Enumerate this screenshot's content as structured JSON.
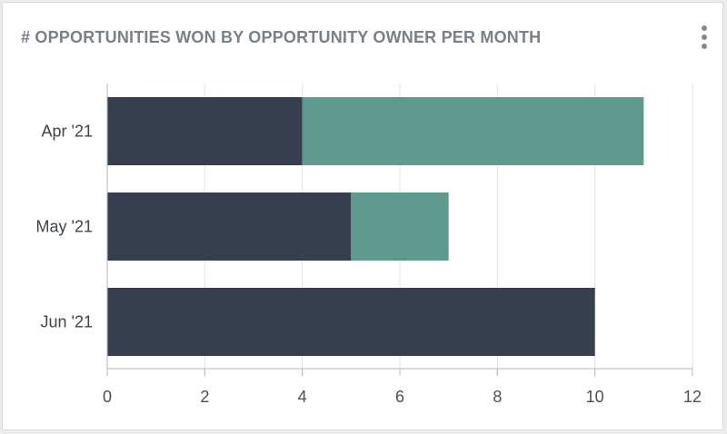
{
  "widget": {
    "title": "# OPPORTUNITIES WON BY OPPORTUNITY OWNER PER MONTH",
    "menu_icon": "more-vertical-icon"
  },
  "colors": {
    "series_1": "#363e4f",
    "series_2": "#5e9a8d",
    "grid": "#e2e2e2",
    "axis": "#b5b5b5"
  },
  "chart_data": {
    "type": "bar",
    "orientation": "horizontal",
    "stacked": true,
    "categories": [
      "Apr '21",
      "May '21",
      "Jun '21"
    ],
    "series": [
      {
        "values": [
          4,
          5,
          10
        ]
      },
      {
        "values": [
          7,
          2,
          0
        ]
      }
    ],
    "xlim": [
      0,
      12
    ],
    "xticks": [
      0,
      2,
      4,
      6,
      8,
      10,
      12
    ],
    "grid": true,
    "legend": "none"
  }
}
